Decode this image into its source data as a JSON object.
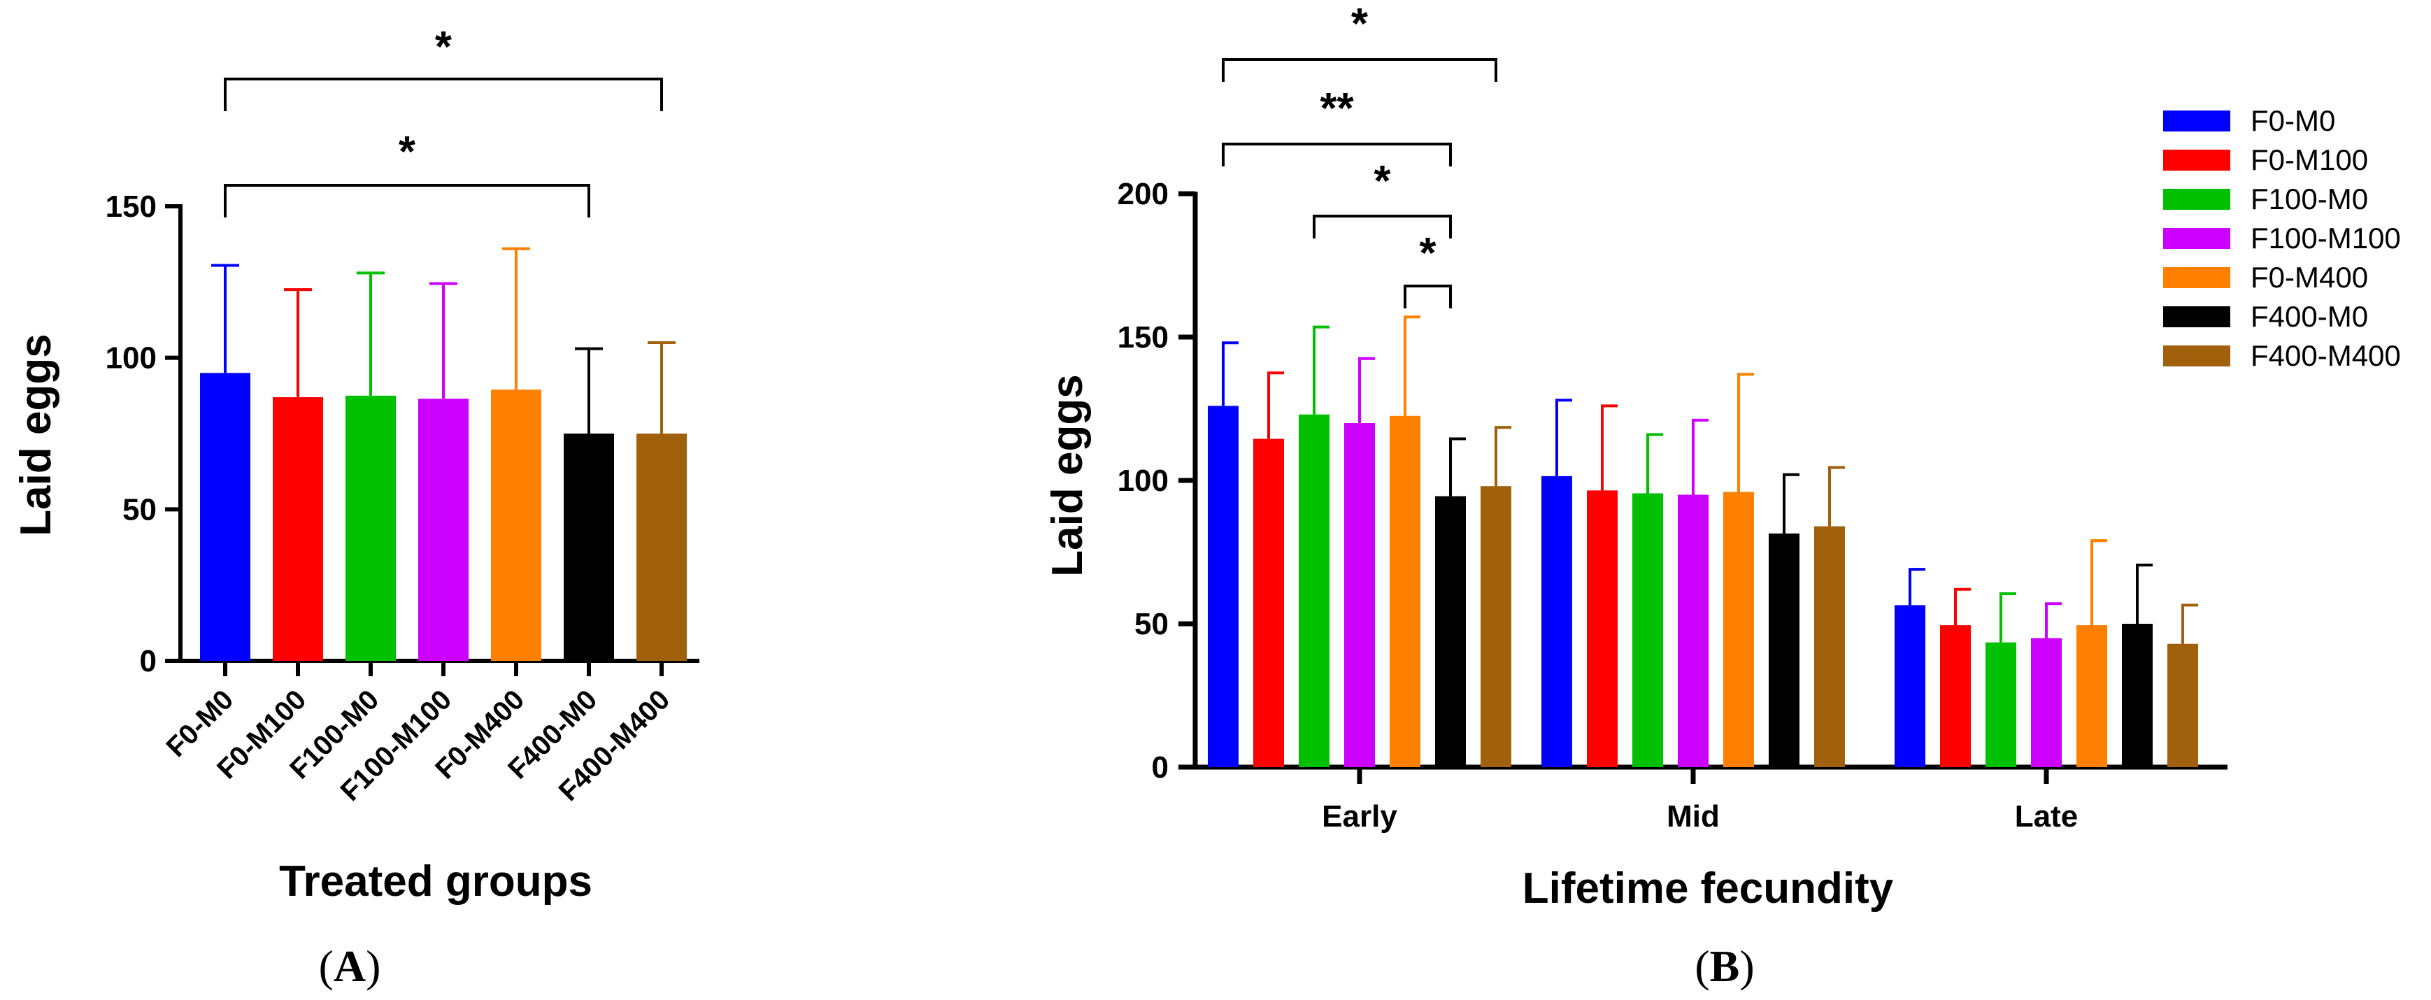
{
  "colors": {
    "F0-M0": "#0000ff",
    "F0-M100": "#ff0000",
    "F100-M0": "#00c000",
    "F100-M100": "#cc00ff",
    "F0-M400": "#ff8000",
    "F400-M0": "#000000",
    "F400-M400": "#a0600c"
  },
  "chart_data": [
    {
      "panel": "A",
      "type": "bar",
      "xlabel": "Treated groups",
      "ylabel": "Laid eggs",
      "ylim": [
        0,
        150
      ],
      "yticks": [
        0,
        50,
        100,
        150
      ],
      "categories": [
        "F0-M0",
        "F0-M100",
        "F100-M0",
        "F100-M100",
        "F0-M400",
        "F400-M0",
        "F400-M400"
      ],
      "values": [
        95,
        87,
        87.5,
        86.5,
        89.5,
        75,
        75
      ],
      "errors": [
        35.5,
        35.5,
        40.5,
        38,
        46.5,
        28,
        30
      ],
      "significance": [
        {
          "from": 0,
          "to": 6,
          "label": "*"
        },
        {
          "from": 0,
          "to": 5,
          "label": "*"
        }
      ],
      "panel_label": "A"
    },
    {
      "panel": "B",
      "type": "bar",
      "xlabel": "Lifetime fecundity",
      "ylabel": "Laid eggs",
      "ylim": [
        0,
        200
      ],
      "yticks": [
        0,
        50,
        100,
        150,
        200
      ],
      "categories": [
        "Early",
        "Mid",
        "Late"
      ],
      "series": [
        {
          "name": "F0-M0",
          "values": [
            126,
            101.5,
            56.5
          ],
          "errors": [
            22,
            26.5,
            12.5
          ]
        },
        {
          "name": "F0-M100",
          "values": [
            114.5,
            96.5,
            49.5
          ],
          "errors": [
            23,
            29.5,
            12.5
          ]
        },
        {
          "name": "F100-M0",
          "values": [
            123,
            95.5,
            43.5
          ],
          "errors": [
            30.5,
            20.5,
            17
          ]
        },
        {
          "name": "F100-M100",
          "values": [
            120,
            95,
            45
          ],
          "errors": [
            22.5,
            26,
            12
          ]
        },
        {
          "name": "F0-M400",
          "values": [
            122.5,
            96,
            49.5
          ],
          "errors": [
            34.5,
            41,
            29.5
          ]
        },
        {
          "name": "F400-M0",
          "values": [
            94.5,
            81.5,
            50
          ],
          "errors": [
            20,
            20.5,
            20.5
          ]
        },
        {
          "name": "F400-M400",
          "values": [
            98,
            84,
            43
          ],
          "errors": [
            20.5,
            20.5,
            13.5
          ]
        }
      ],
      "significance": [
        {
          "category": 0,
          "from": 0,
          "to": 6,
          "label": "*"
        },
        {
          "category": 0,
          "from": 0,
          "to": 5,
          "label": "**"
        },
        {
          "category": 0,
          "from": 2,
          "to": 5,
          "label": "*"
        },
        {
          "category": 0,
          "from": 4,
          "to": 5,
          "label": "*"
        }
      ],
      "legend": [
        "F0-M0",
        "F0-M100",
        "F100-M0",
        "F100-M100",
        "F0-M400",
        "F400-M0",
        "F400-M400"
      ],
      "legend_position": "top-right",
      "panel_label": "B"
    }
  ]
}
